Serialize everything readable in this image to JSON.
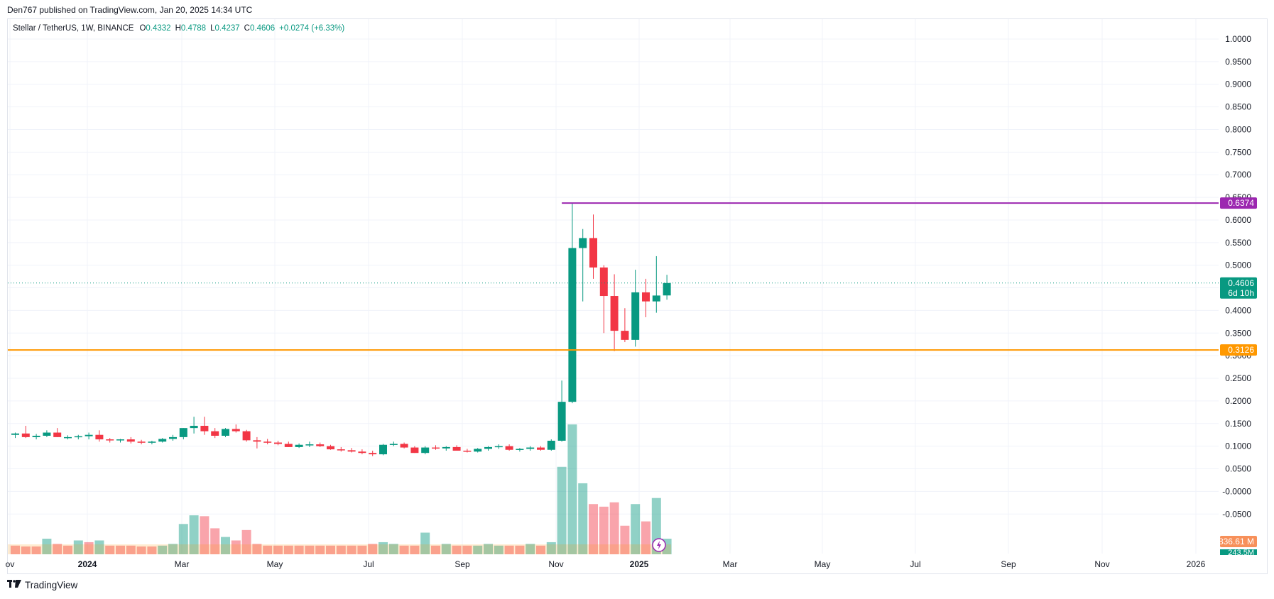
{
  "header": {
    "published": "Den767 published on TradingView.com, Jan 20, 2025 14:34 UTC"
  },
  "legend": {
    "symbol": "Stellar / TetherUS, 1W, BINANCE",
    "o_label": "O",
    "o": "0.4332",
    "h_label": "H",
    "h": "0.4788",
    "l_label": "L",
    "l": "0.4237",
    "c_label": "C",
    "c": "0.4606",
    "change": "+0.0274 (+6.33%)"
  },
  "price_axis": [
    "1.0000",
    "0.9500",
    "0.9000",
    "0.8500",
    "0.8000",
    "0.7500",
    "0.7000",
    "0.6500",
    "0.6000",
    "0.5500",
    "0.5000",
    "0.4500",
    "0.4000",
    "0.3500",
    "0.3000",
    "0.2500",
    "0.2000",
    "0.1500",
    "0.1000",
    "0.0500",
    "-0.0000",
    "-0.0500"
  ],
  "time_axis": [
    {
      "label": "ov",
      "bold": false
    },
    {
      "label": "2024",
      "bold": true
    },
    {
      "label": "Mar",
      "bold": false
    },
    {
      "label": "May",
      "bold": false
    },
    {
      "label": "Jul",
      "bold": false
    },
    {
      "label": "Sep",
      "bold": false
    },
    {
      "label": "Nov",
      "bold": false
    },
    {
      "label": "2025",
      "bold": true
    },
    {
      "label": "Mar",
      "bold": false
    },
    {
      "label": "May",
      "bold": false
    },
    {
      "label": "Jul",
      "bold": false
    },
    {
      "label": "Sep",
      "bold": false
    },
    {
      "label": "Nov",
      "bold": false
    },
    {
      "label": "2026",
      "bold": false
    }
  ],
  "badges": {
    "resistance": "0.6374",
    "current": "0.4606",
    "countdown": "6d 10h",
    "support": "0.3126",
    "volume": "836.61 M",
    "volume_partial": "243.5M"
  },
  "colors": {
    "up": "#089981",
    "down": "#f23645",
    "resistance": "#9c27b0",
    "support": "#ff9800",
    "grid": "#f0f3fa"
  },
  "footer": {
    "brand": "TradingView"
  },
  "chart_data": {
    "type": "candlestick",
    "title": "Stellar / TetherUS, 1W, BINANCE",
    "ylim": [
      -0.07,
      1.0
    ],
    "levels": [
      {
        "value": 0.6374,
        "color": "#9c27b0",
        "from_index": 52
      },
      {
        "value": 0.3126,
        "color": "#ff9800",
        "from_index": 0
      }
    ],
    "current_price": 0.4606,
    "candles": [
      [
        0.125,
        0.13,
        0.118,
        0.128
      ],
      [
        0.128,
        0.145,
        0.118,
        0.12
      ],
      [
        0.12,
        0.127,
        0.115,
        0.123
      ],
      [
        0.123,
        0.135,
        0.12,
        0.13
      ],
      [
        0.13,
        0.14,
        0.12,
        0.12
      ],
      [
        0.12,
        0.124,
        0.115,
        0.12
      ],
      [
        0.12,
        0.125,
        0.115,
        0.122
      ],
      [
        0.122,
        0.13,
        0.115,
        0.125
      ],
      [
        0.125,
        0.135,
        0.11,
        0.115
      ],
      [
        0.115,
        0.118,
        0.108,
        0.113
      ],
      [
        0.113,
        0.116,
        0.108,
        0.115
      ],
      [
        0.115,
        0.12,
        0.106,
        0.11
      ],
      [
        0.11,
        0.114,
        0.104,
        0.108
      ],
      [
        0.108,
        0.112,
        0.104,
        0.11
      ],
      [
        0.11,
        0.118,
        0.108,
        0.116
      ],
      [
        0.116,
        0.125,
        0.112,
        0.12
      ],
      [
        0.12,
        0.14,
        0.115,
        0.14
      ],
      [
        0.14,
        0.165,
        0.128,
        0.145
      ],
      [
        0.145,
        0.165,
        0.125,
        0.133
      ],
      [
        0.133,
        0.14,
        0.118,
        0.123
      ],
      [
        0.123,
        0.14,
        0.12,
        0.138
      ],
      [
        0.138,
        0.148,
        0.13,
        0.133
      ],
      [
        0.133,
        0.136,
        0.11,
        0.113
      ],
      [
        0.113,
        0.12,
        0.095,
        0.11
      ],
      [
        0.11,
        0.116,
        0.104,
        0.108
      ],
      [
        0.108,
        0.112,
        0.102,
        0.105
      ],
      [
        0.105,
        0.11,
        0.098,
        0.098
      ],
      [
        0.098,
        0.106,
        0.096,
        0.103
      ],
      [
        0.103,
        0.11,
        0.098,
        0.104
      ],
      [
        0.104,
        0.108,
        0.098,
        0.1
      ],
      [
        0.1,
        0.103,
        0.092,
        0.093
      ],
      [
        0.093,
        0.098,
        0.088,
        0.091
      ],
      [
        0.091,
        0.096,
        0.086,
        0.088
      ],
      [
        0.088,
        0.093,
        0.082,
        0.085
      ],
      [
        0.085,
        0.09,
        0.078,
        0.082
      ],
      [
        0.082,
        0.105,
        0.08,
        0.103
      ],
      [
        0.103,
        0.11,
        0.1,
        0.105
      ],
      [
        0.105,
        0.108,
        0.095,
        0.097
      ],
      [
        0.097,
        0.1,
        0.085,
        0.085
      ],
      [
        0.085,
        0.1,
        0.082,
        0.097
      ],
      [
        0.097,
        0.102,
        0.092,
        0.095
      ],
      [
        0.095,
        0.1,
        0.09,
        0.098
      ],
      [
        0.098,
        0.102,
        0.09,
        0.09
      ],
      [
        0.09,
        0.094,
        0.086,
        0.088
      ],
      [
        0.088,
        0.096,
        0.086,
        0.094
      ],
      [
        0.094,
        0.1,
        0.09,
        0.098
      ],
      [
        0.098,
        0.104,
        0.094,
        0.1
      ],
      [
        0.1,
        0.104,
        0.09,
        0.092
      ],
      [
        0.092,
        0.096,
        0.088,
        0.094
      ],
      [
        0.094,
        0.1,
        0.09,
        0.097
      ],
      [
        0.097,
        0.1,
        0.09,
        0.092
      ],
      [
        0.092,
        0.115,
        0.09,
        0.112
      ],
      [
        0.112,
        0.245,
        0.11,
        0.198
      ],
      [
        0.198,
        0.6374,
        0.195,
        0.538
      ],
      [
        0.538,
        0.58,
        0.42,
        0.56
      ],
      [
        0.56,
        0.612,
        0.47,
        0.495
      ],
      [
        0.495,
        0.5,
        0.35,
        0.432
      ],
      [
        0.432,
        0.48,
        0.31,
        0.355
      ],
      [
        0.355,
        0.405,
        0.33,
        0.335
      ],
      [
        0.335,
        0.49,
        0.32,
        0.44
      ],
      [
        0.44,
        0.47,
        0.385,
        0.42
      ],
      [
        0.42,
        0.52,
        0.395,
        0.433
      ],
      [
        0.4332,
        0.4788,
        0.4237,
        0.4606
      ]
    ],
    "volumes": [
      [
        0.1,
        0
      ],
      [
        0.09,
        0
      ],
      [
        0.09,
        0
      ],
      [
        0.18,
        1
      ],
      [
        0.12,
        0
      ],
      [
        0.1,
        0
      ],
      [
        0.16,
        1
      ],
      [
        0.14,
        0
      ],
      [
        0.16,
        1
      ],
      [
        0.1,
        0
      ],
      [
        0.1,
        0
      ],
      [
        0.1,
        0
      ],
      [
        0.09,
        0
      ],
      [
        0.09,
        0
      ],
      [
        0.1,
        1
      ],
      [
        0.12,
        1
      ],
      [
        0.35,
        1
      ],
      [
        0.45,
        1
      ],
      [
        0.44,
        0
      ],
      [
        0.3,
        0
      ],
      [
        0.2,
        1
      ],
      [
        0.16,
        0
      ],
      [
        0.28,
        0
      ],
      [
        0.12,
        0
      ],
      [
        0.1,
        0
      ],
      [
        0.1,
        0
      ],
      [
        0.1,
        0
      ],
      [
        0.1,
        0
      ],
      [
        0.1,
        0
      ],
      [
        0.1,
        0
      ],
      [
        0.1,
        0
      ],
      [
        0.1,
        0
      ],
      [
        0.1,
        0
      ],
      [
        0.1,
        0
      ],
      [
        0.12,
        0
      ],
      [
        0.14,
        1
      ],
      [
        0.12,
        1
      ],
      [
        0.1,
        0
      ],
      [
        0.1,
        0
      ],
      [
        0.25,
        1
      ],
      [
        0.1,
        0
      ],
      [
        0.12,
        1
      ],
      [
        0.1,
        0
      ],
      [
        0.1,
        0
      ],
      [
        0.1,
        1
      ],
      [
        0.12,
        1
      ],
      [
        0.1,
        1
      ],
      [
        0.1,
        0
      ],
      [
        0.1,
        0
      ],
      [
        0.12,
        1
      ],
      [
        0.1,
        0
      ],
      [
        0.14,
        1
      ],
      [
        1.01,
        1
      ],
      [
        1.5,
        1
      ],
      [
        0.82,
        1
      ],
      [
        0.58,
        0
      ],
      [
        0.55,
        0
      ],
      [
        0.6,
        0
      ],
      [
        0.33,
        0
      ],
      [
        0.58,
        1
      ],
      [
        0.38,
        0
      ],
      [
        0.65,
        1
      ],
      [
        0.18,
        1
      ]
    ]
  }
}
